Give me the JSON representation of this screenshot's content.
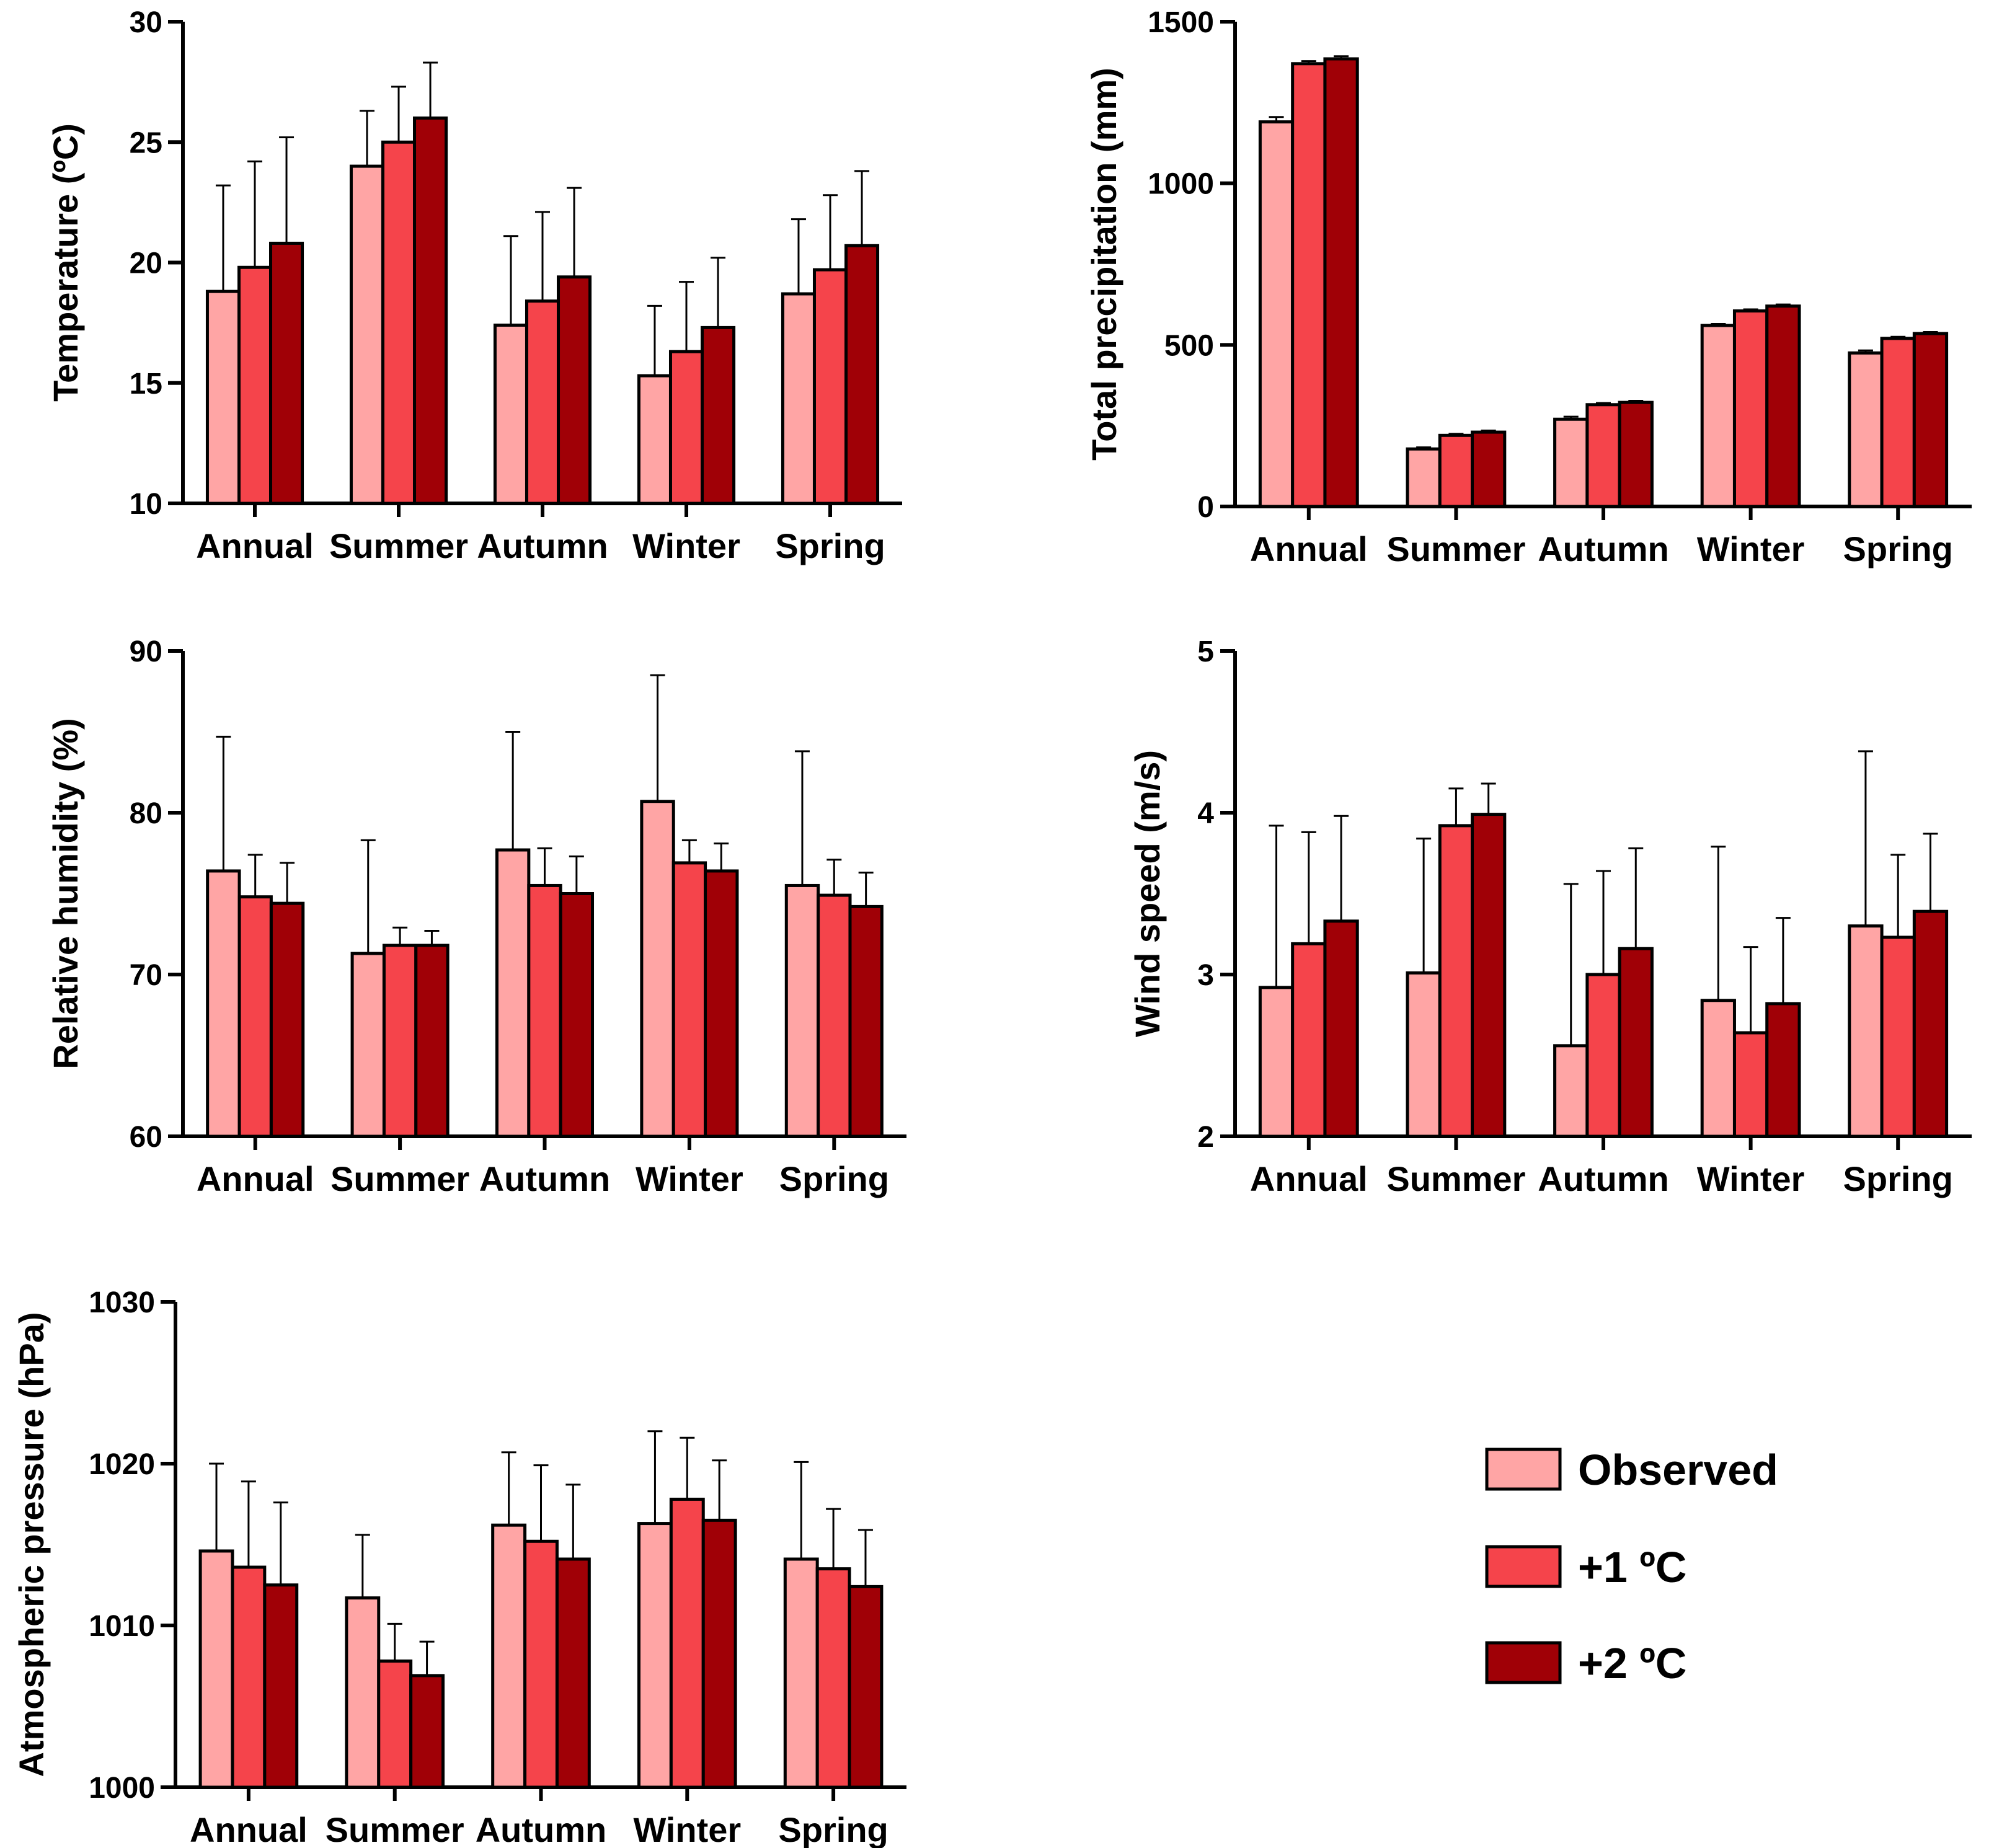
{
  "colors": {
    "observed": "#FFA5A5",
    "plus1": "#F5444B",
    "plus2": "#A00006"
  },
  "legend": {
    "items": [
      {
        "label": "Observed",
        "color_key": "observed"
      },
      {
        "label": "+1 ºC",
        "color_key": "plus1"
      },
      {
        "label": "+2 ºC",
        "color_key": "plus2"
      }
    ]
  },
  "chart_data": [
    {
      "type": "bar",
      "ylabel": "Temperature (ºC)",
      "categories": [
        "Annual",
        "Summer",
        "Autumn",
        "Winter",
        "Spring"
      ],
      "ylim": [
        10,
        30
      ],
      "yticks": [
        10,
        15,
        20,
        25,
        30
      ],
      "ytick_labels": [
        "10",
        "15",
        "20",
        "25",
        "30"
      ],
      "series": [
        {
          "name": "Observed",
          "values": [
            18.8,
            24.0,
            17.4,
            15.3,
            18.7
          ],
          "errors": [
            4.4,
            2.3,
            3.7,
            2.9,
            3.1
          ]
        },
        {
          "name": "+1 ºC",
          "values": [
            19.8,
            25.0,
            18.4,
            16.3,
            19.7
          ],
          "errors": [
            4.4,
            2.3,
            3.7,
            2.9,
            3.1
          ]
        },
        {
          "name": "+2 ºC",
          "values": [
            20.8,
            26.0,
            19.4,
            17.3,
            20.7
          ],
          "errors": [
            4.4,
            2.3,
            3.7,
            2.9,
            3.1
          ]
        }
      ]
    },
    {
      "type": "bar",
      "ylabel": "Total precipitation (mm)",
      "categories": [
        "Annual",
        "Summer",
        "Autumn",
        "Winter",
        "Spring"
      ],
      "ylim": [
        0,
        1500
      ],
      "yticks": [
        0,
        500,
        1000,
        1500
      ],
      "ytick_labels": [
        "0",
        "500",
        "1000",
        "1500"
      ],
      "series": [
        {
          "name": "Observed",
          "values": [
            1190,
            178,
            270,
            560,
            475
          ],
          "errors": [
            15,
            5,
            8,
            5,
            8
          ]
        },
        {
          "name": "+1 ºC",
          "values": [
            1370,
            220,
            315,
            605,
            520
          ],
          "errors": [
            8,
            5,
            5,
            5,
            5
          ]
        },
        {
          "name": "+2 ºC",
          "values": [
            1385,
            230,
            322,
            620,
            535
          ],
          "errors": [
            8,
            5,
            5,
            5,
            5
          ]
        }
      ]
    },
    {
      "type": "bar",
      "ylabel": "Relative humidity (%)",
      "categories": [
        "Annual",
        "Summer",
        "Autumn",
        "Winter",
        "Spring"
      ],
      "ylim": [
        60,
        90
      ],
      "yticks": [
        60,
        70,
        80,
        90
      ],
      "ytick_labels": [
        "60",
        "70",
        "80",
        "90"
      ],
      "series": [
        {
          "name": "Observed",
          "values": [
            76.4,
            71.3,
            77.7,
            80.7,
            75.5
          ],
          "errors": [
            8.3,
            7.0,
            7.3,
            7.8,
            8.3
          ]
        },
        {
          "name": "+1 ºC",
          "values": [
            74.8,
            71.8,
            75.5,
            76.9,
            74.9
          ],
          "errors": [
            2.6,
            1.1,
            2.3,
            1.4,
            2.2
          ]
        },
        {
          "name": "+2 ºC",
          "values": [
            74.4,
            71.8,
            75.0,
            76.4,
            74.2
          ],
          "errors": [
            2.5,
            0.9,
            2.3,
            1.7,
            2.1
          ]
        }
      ]
    },
    {
      "type": "bar",
      "ylabel": "Wind speed (m/s)",
      "categories": [
        "Annual",
        "Summer",
        "Autumn",
        "Winter",
        "Spring"
      ],
      "ylim": [
        2,
        5
      ],
      "yticks": [
        2,
        3,
        4,
        5
      ],
      "ytick_labels": [
        "2",
        "3",
        "4",
        "5"
      ],
      "series": [
        {
          "name": "Observed",
          "values": [
            2.92,
            3.01,
            2.56,
            2.84,
            3.3
          ],
          "errors": [
            1.0,
            0.83,
            1.0,
            0.95,
            1.08
          ]
        },
        {
          "name": "+1 ºC",
          "values": [
            3.19,
            3.92,
            3.0,
            2.64,
            3.23
          ],
          "errors": [
            0.69,
            0.23,
            0.64,
            0.53,
            0.51
          ]
        },
        {
          "name": "+2 ºC",
          "values": [
            3.33,
            3.99,
            3.16,
            2.82,
            3.39
          ],
          "errors": [
            0.65,
            0.19,
            0.62,
            0.53,
            0.48
          ]
        }
      ]
    },
    {
      "type": "bar",
      "ylabel": "Atmospheric pressure (hPa)",
      "categories": [
        "Annual",
        "Summer",
        "Autumn",
        "Winter",
        "Spring"
      ],
      "ylim": [
        1000,
        1030
      ],
      "yticks": [
        1000,
        1010,
        1020,
        1030
      ],
      "ytick_labels": [
        "1000",
        "1010",
        "1020",
        "1030"
      ],
      "series": [
        {
          "name": "Observed",
          "values": [
            1014.6,
            1011.7,
            1016.2,
            1016.3,
            1014.1
          ],
          "errors": [
            5.4,
            3.9,
            4.5,
            5.7,
            6.0
          ]
        },
        {
          "name": "+1 ºC",
          "values": [
            1013.6,
            1007.8,
            1015.2,
            1017.8,
            1013.5
          ],
          "errors": [
            5.3,
            2.3,
            4.7,
            3.8,
            3.7
          ]
        },
        {
          "name": "+2 ºC",
          "values": [
            1012.5,
            1006.9,
            1014.1,
            1016.5,
            1012.4
          ],
          "errors": [
            5.1,
            2.1,
            4.6,
            3.7,
            3.5
          ]
        }
      ]
    }
  ]
}
